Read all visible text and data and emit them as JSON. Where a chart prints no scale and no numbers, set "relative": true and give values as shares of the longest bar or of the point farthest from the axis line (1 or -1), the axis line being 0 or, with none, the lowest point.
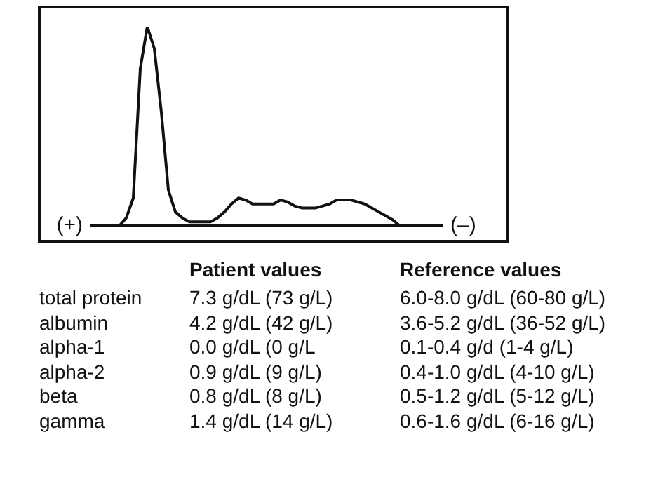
{
  "chart_data": [
    {
      "type": "line",
      "relative": true,
      "color": "#111111",
      "marker": "none",
      "legend": false,
      "categories": [
        null,
        null,
        null,
        null,
        null,
        null,
        null,
        null,
        null,
        null,
        null,
        null,
        null,
        null,
        null,
        null,
        null,
        null,
        null,
        null,
        null,
        null,
        null,
        null,
        null,
        null,
        null,
        null,
        null,
        null,
        null,
        null,
        null,
        null,
        null,
        null,
        null,
        null,
        null,
        null,
        null,
        null,
        null,
        null,
        null,
        null,
        null,
        null,
        null,
        null,
        null
      ],
      "values": [
        0,
        0,
        0,
        0,
        0,
        0.04,
        0.14,
        0.79,
        1,
        0.89,
        0.57,
        0.18,
        0.07,
        0.04,
        0.02,
        0.02,
        0.02,
        0.02,
        0.04,
        0.07,
        0.11,
        0.14,
        0.13,
        0.11,
        0.11,
        0.11,
        0.11,
        0.13,
        0.12,
        0.1,
        0.09,
        0.09,
        0.09,
        0.1,
        0.11,
        0.13,
        0.13,
        0.13,
        0.12,
        0.11,
        0.09,
        0.07,
        0.05,
        0.03,
        0,
        0,
        0,
        0,
        0,
        0,
        0
      ],
      "annotations": [
        "(+)",
        "(–)"
      ]
    },
    {
      "type": "other",
      "annotations": [
        "Patient values",
        "Reference values",
        "total protein",
        "7.3 g/dL (73 g/L)",
        "6.0-8.0 g/dL (60-80 g/L)",
        "albumin",
        "4.2 g/dL (42 g/L)",
        "3.6-5.2 g/dL (36-52 g/L)",
        "alpha-1",
        "0.0 g/dL (0 g/L",
        "0.1-0.4 g/d (1-4 g/L)",
        "alpha-2",
        "0.9 g/dL (9 g/L)",
        "0.4-1.0 g/dL (4-10 g/L)",
        "beta",
        "0.8 g/dL (8 g/L)",
        "0.5-1.2 g/dL (5-12 g/L)",
        "gamma",
        "1.4 g/dL (14 g/L)",
        "0.6-1.6 g/dL (6-16 g/L)"
      ]
    }
  ]
}
